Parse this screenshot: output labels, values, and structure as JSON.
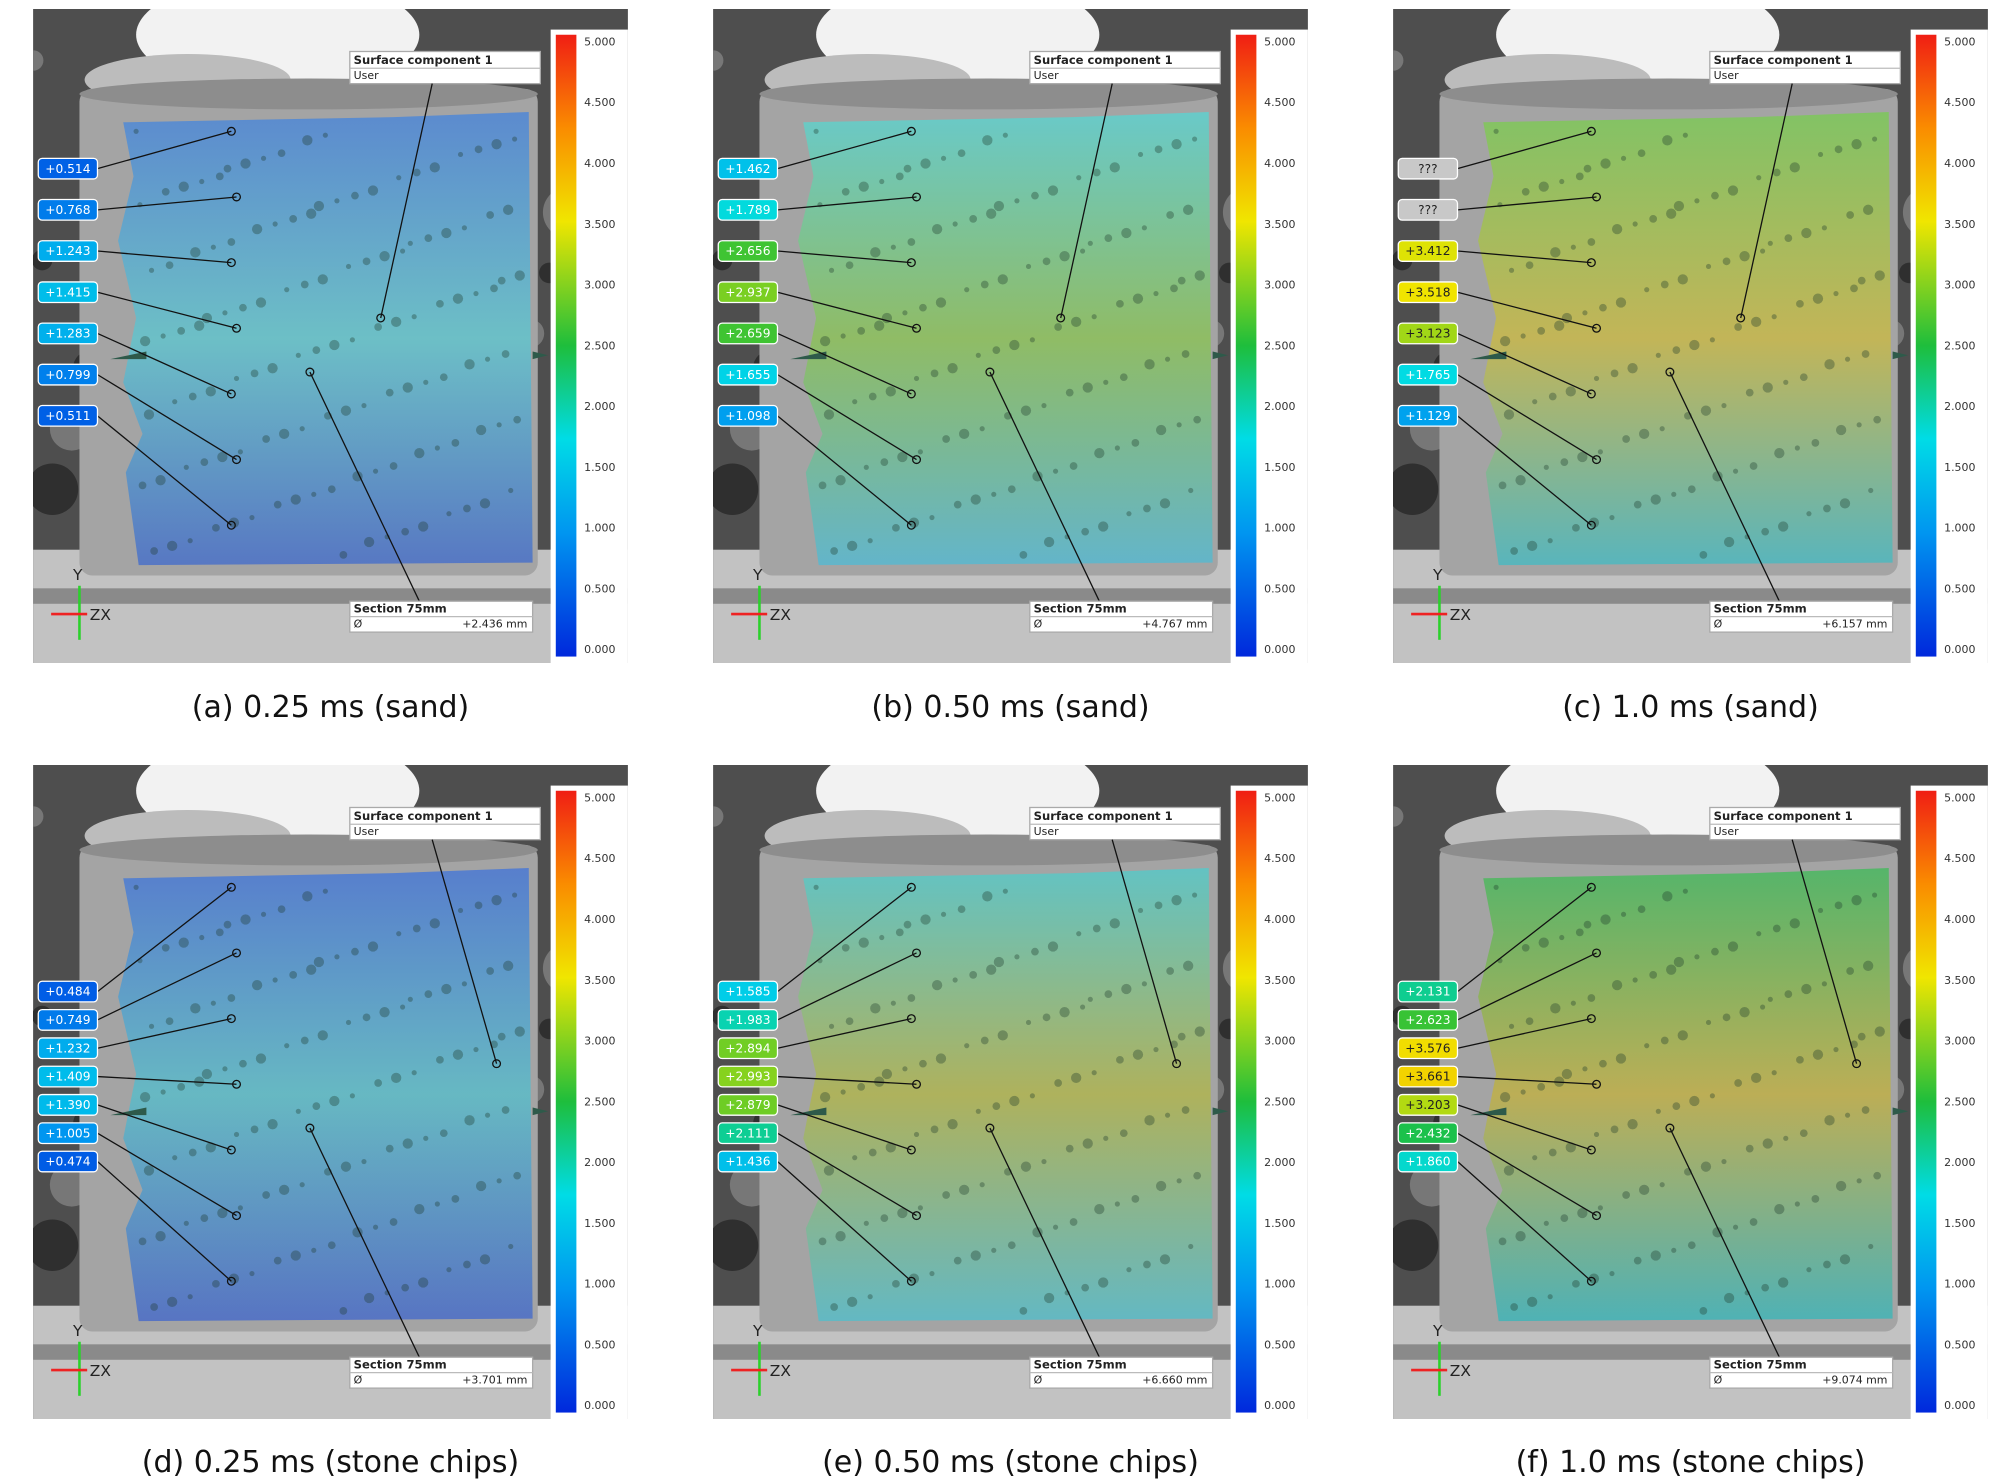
{
  "colorbar_ticks": [
    "5.000",
    "4.500",
    "4.000",
    "3.500",
    "3.000",
    "2.500",
    "2.000",
    "1.500",
    "1.000",
    "0.500",
    "0.000"
  ],
  "surface_title": "Surface component 1",
  "surface_sub": "User",
  "section_title": "Section 75mm",
  "section_symbol": "Ø",
  "axis_y": "Y",
  "axis_zx": "ZX",
  "panels": [
    {
      "caption": "(a) 0.25 ms (sand)",
      "labels": [
        "+0.514",
        "+0.768",
        "+1.243",
        "+1.415",
        "+1.283",
        "+0.799",
        "+0.511"
      ],
      "section_value": "+2.436 mm",
      "overlay": [
        "#4f86d6",
        "#63c4cc",
        "#4a70c8"
      ]
    },
    {
      "caption": "(b) 0.50 ms (sand)",
      "labels": [
        "+1.462",
        "+1.789",
        "+2.656",
        "+2.937",
        "+2.659",
        "+1.655",
        "+1.098"
      ],
      "section_value": "+4.767 mm",
      "overlay": [
        "#5fd0cf",
        "#8cc05a",
        "#58b8d0"
      ]
    },
    {
      "caption": "(c) 1.0 ms (sand)",
      "labels": [
        "???",
        "???",
        "+3.412",
        "+3.518",
        "+3.123",
        "+1.765",
        "+1.129"
      ],
      "section_value": "+6.157 mm",
      "overlay": [
        "#7cc85a",
        "#c8b84a",
        "#4cb8c0"
      ]
    },
    {
      "caption": "(d) 0.25 ms (stone chips)",
      "labels": [
        "+0.484",
        "+0.749",
        "+1.232",
        "+1.409",
        "+1.390",
        "+1.005",
        "+0.474"
      ],
      "section_value": "+3.701 mm",
      "overlay": [
        "#4a78d4",
        "#5cbcc8",
        "#4a6cc8"
      ]
    },
    {
      "caption": "(e) 0.50 ms (stone chips)",
      "labels": [
        "+1.585",
        "+1.983",
        "+2.894",
        "+2.993",
        "+2.879",
        "+2.111",
        "+1.436"
      ],
      "section_value": "+6.660 mm",
      "overlay": [
        "#58c8c8",
        "#b0b450",
        "#58bcc8"
      ]
    },
    {
      "caption": "(f) 1.0 ms (stone chips)",
      "labels": [
        "+2.131",
        "+2.623",
        "+3.576",
        "+3.661",
        "+3.203",
        "+2.432",
        "+1.860"
      ],
      "section_value": "+9.074 mm",
      "overlay": [
        "#48b860",
        "#c0b048",
        "#40b4b8"
      ]
    }
  ]
}
